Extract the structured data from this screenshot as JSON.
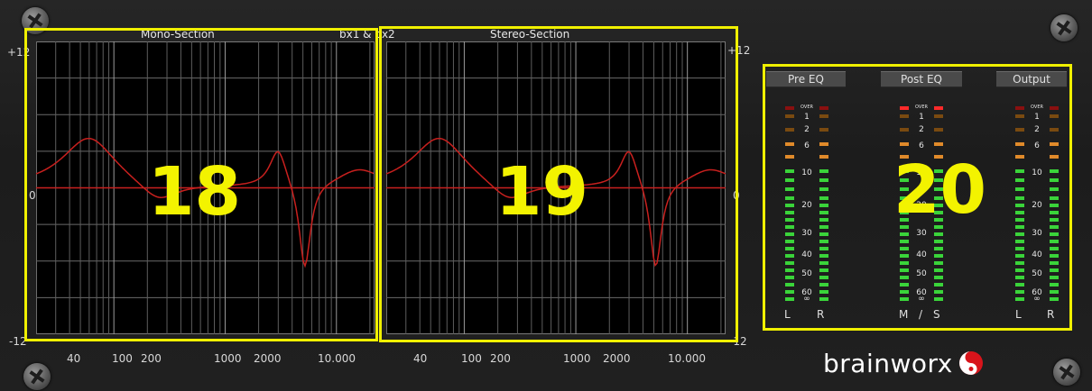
{
  "header": {
    "mono_title": "Mono-Section",
    "stereo_title": "Stereo-Section",
    "center_title": "bx1 & bx2"
  },
  "graphs": {
    "left_scale": {
      "top": "+12",
      "mid": "0",
      "bottom": "-12"
    },
    "right_scale": {
      "top": "+12",
      "mid": "0",
      "bottom": "-12"
    },
    "mono_freq_labels": [
      "40",
      "100",
      "200",
      "1000",
      "2000",
      "10.000"
    ],
    "stereo_freq_labels": [
      "40",
      "100",
      "200",
      "1000",
      "2000",
      "10.000"
    ]
  },
  "annotations": {
    "mono_number": "18",
    "stereo_number": "19",
    "meter_number": "20"
  },
  "meters": {
    "buttons": [
      "Pre EQ",
      "Post EQ",
      "Output"
    ],
    "scale": [
      "OVER",
      "1",
      "2",
      "6",
      "10",
      "20",
      "30",
      "40",
      "50",
      "60",
      "∞"
    ],
    "channels": [
      {
        "left": "L",
        "right": "R"
      },
      {
        "left": "M",
        "sep": "/",
        "right": "S"
      },
      {
        "left": "L",
        "right": "R"
      }
    ]
  },
  "brand": {
    "name": "brainworx"
  },
  "colors": {
    "highlight": "#f0f000",
    "curve": "#c8201e",
    "meter_green": "#3ad43a",
    "meter_orange": "#e08a2a"
  }
}
